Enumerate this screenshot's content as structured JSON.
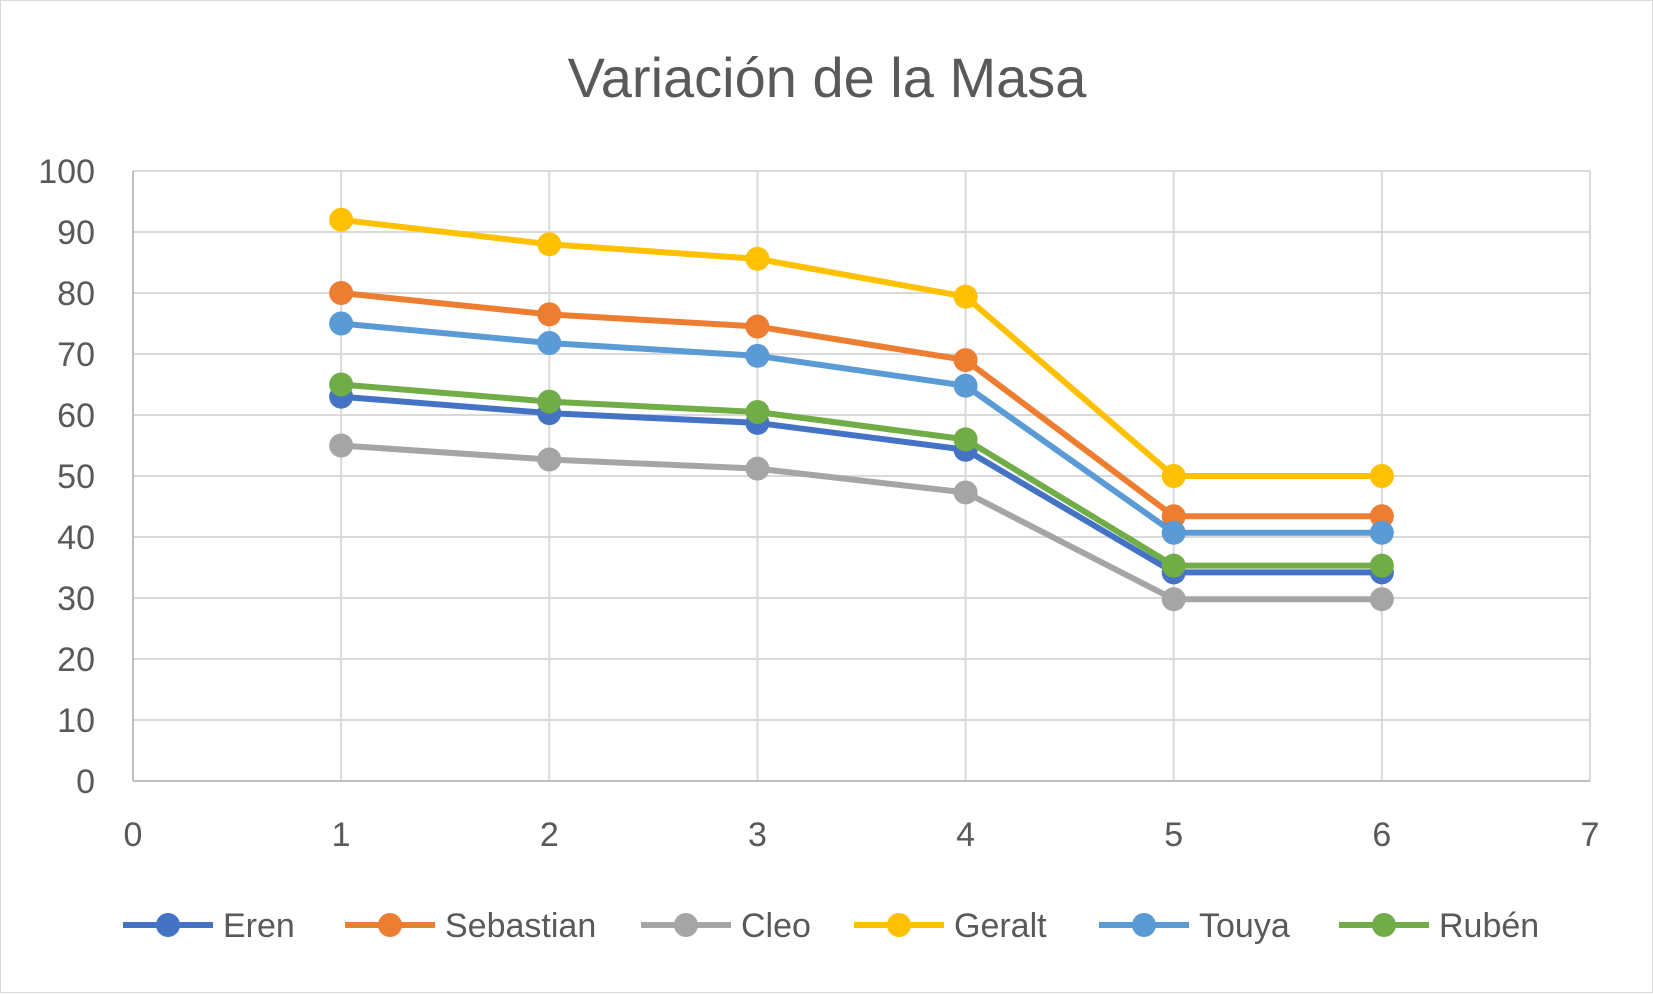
{
  "chart_data": {
    "type": "line",
    "title": "Variación de la Masa",
    "xlabel": "",
    "ylabel": "",
    "xlim": [
      0,
      7
    ],
    "ylim": [
      0,
      100
    ],
    "x_ticks": [
      0,
      1,
      2,
      3,
      4,
      5,
      6,
      7
    ],
    "y_ticks": [
      0,
      10,
      20,
      30,
      40,
      50,
      60,
      70,
      80,
      90,
      100
    ],
    "grid": true,
    "legend_position": "bottom",
    "x": [
      1,
      2,
      3,
      4,
      5,
      6
    ],
    "series": [
      {
        "name": "Eren",
        "color": "#4472C4",
        "values": [
          63,
          60.3,
          58.7,
          54.3,
          34.2,
          34.2
        ]
      },
      {
        "name": "Sebastian",
        "color": "#ED7D31",
        "values": [
          80,
          76.5,
          74.5,
          69,
          43.4,
          43.4
        ]
      },
      {
        "name": "Cleo",
        "color": "#A5A5A5",
        "values": [
          55,
          52.7,
          51.2,
          47.3,
          29.8,
          29.8
        ]
      },
      {
        "name": "Geralt",
        "color": "#FFC000",
        "values": [
          92,
          88,
          85.6,
          79.4,
          50,
          50
        ]
      },
      {
        "name": "Touya",
        "color": "#5B9BD5",
        "values": [
          75,
          71.8,
          69.7,
          64.8,
          40.7,
          40.7
        ]
      },
      {
        "name": "Rubén",
        "color": "#70AD47",
        "values": [
          65,
          62.2,
          60.5,
          56,
          35.3,
          35.3
        ]
      }
    ]
  }
}
